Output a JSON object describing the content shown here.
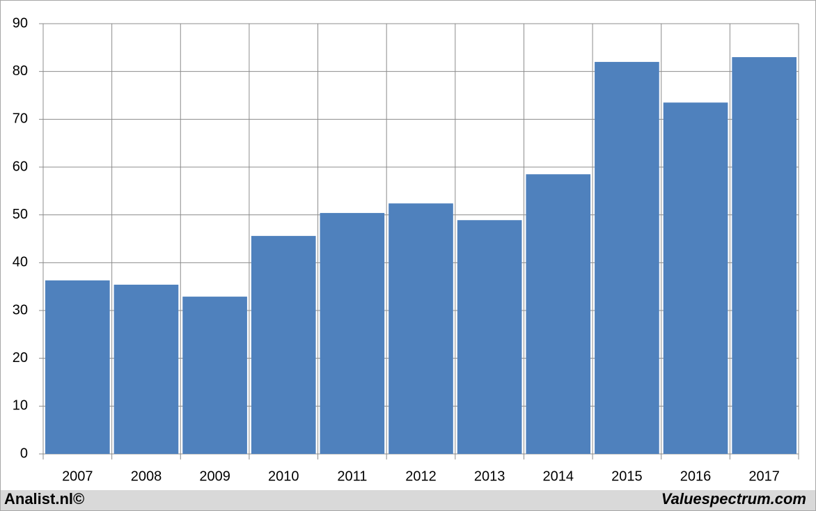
{
  "chart_data": {
    "type": "bar",
    "categories": [
      "2007",
      "2008",
      "2009",
      "2010",
      "2011",
      "2012",
      "2013",
      "2014",
      "2015",
      "2016",
      "2017"
    ],
    "values": [
      36.3,
      35.4,
      32.9,
      45.6,
      50.4,
      52.4,
      48.9,
      58.5,
      82.0,
      73.5,
      83.0
    ],
    "color": "#4f81bd",
    "ylim": [
      0,
      90
    ],
    "yticks": [
      0,
      10,
      20,
      30,
      40,
      50,
      60,
      70,
      80,
      90
    ],
    "grid": true,
    "annotations": [
      "Analist.nl©",
      "Valuespectrum.com"
    ]
  }
}
